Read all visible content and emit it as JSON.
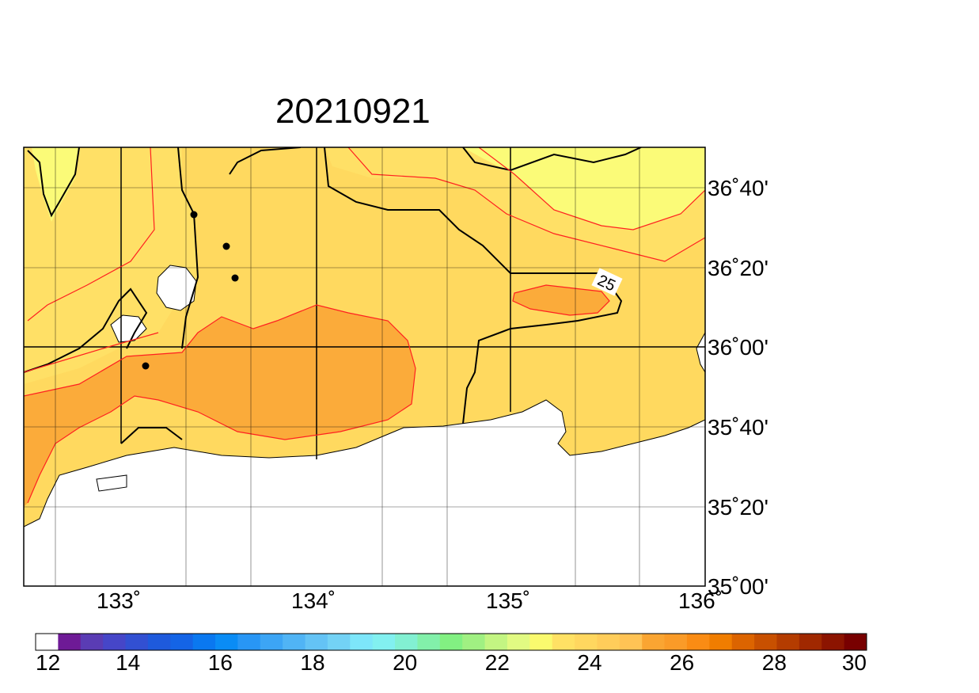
{
  "title": "20210921",
  "contour_label": "25",
  "longitude_labels": [
    "133˚",
    "134˚",
    "135˚",
    "136˚"
  ],
  "latitude_labels": [
    "36˚40'",
    "36˚20'",
    "36˚00'",
    "35˚40'",
    "35˚20'",
    "35˚00'"
  ],
  "colorbar": {
    "labels": [
      "12",
      "14",
      "16",
      "18",
      "20",
      "22",
      "24",
      "26",
      "28",
      "30"
    ],
    "colors": [
      "#ffffff",
      "#6e1a96",
      "#5a3cb4",
      "#4646c8",
      "#3250d2",
      "#1e5adc",
      "#1464e6",
      "#0a78f0",
      "#0a8cf5",
      "#2896f5",
      "#3ca5f5",
      "#50b4f5",
      "#64c3f5",
      "#73d2f5",
      "#7de6fa",
      "#82f0f0",
      "#82f0d2",
      "#82f0aa",
      "#82f082",
      "#a0f082",
      "#c3f582",
      "#e1fa82",
      "#fafa6e",
      "#ffe164",
      "#ffd75f",
      "#ffcd5a",
      "#ffc355",
      "#faa532",
      "#fa9b28",
      "#fa8c14",
      "#f07d00",
      "#dc6400",
      "#c85000",
      "#b43c00",
      "#a02800",
      "#8c1400",
      "#780000"
    ]
  },
  "map_colors": {
    "land": "#ffffff",
    "sst_24_25": "#ffd95f",
    "sst_25_26": "#ffe066",
    "sst_26_27": "#fbab3a",
    "sst_23_24": "#fbfb78",
    "contour_black": "#000000",
    "contour_red": "#ff2020"
  }
}
